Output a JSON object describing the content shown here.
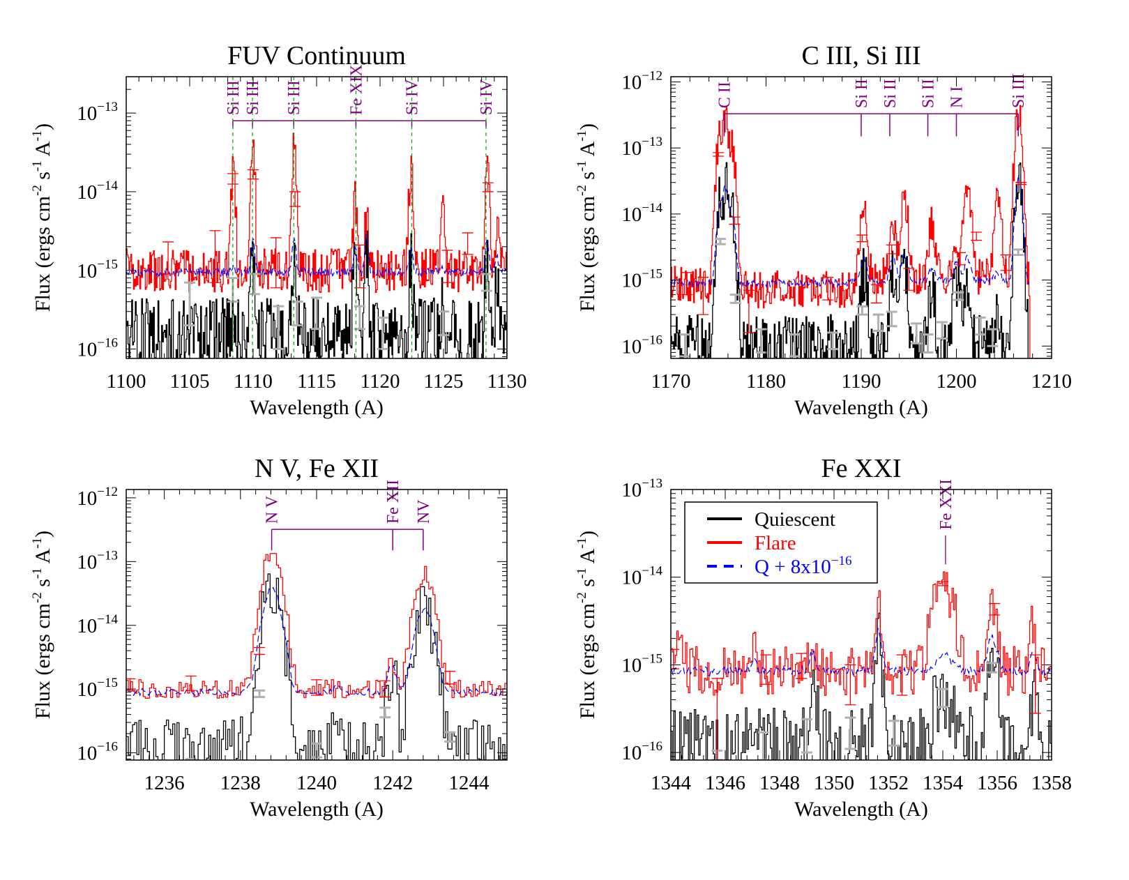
{
  "figure": {
    "ylabel_text": "Flux (ergs cm",
    "ylabel_parts": [
      "Flux (ergs cm",
      "-2",
      " s",
      "-1",
      " A",
      "-1",
      ")"
    ],
    "xlabel": "Wavelength (A)",
    "colors": {
      "quiescent": "#000000",
      "flare": "#ff0000",
      "shifted": "#0000ff",
      "line_id": "#800080",
      "line_marker": "#00aa00",
      "error_q": "#b0b0b0"
    }
  },
  "legend": {
    "placement": "upper-left of Fe XXI panel",
    "entries": [
      {
        "label": "Quiescent",
        "color": "#000000",
        "style": "solid"
      },
      {
        "label": "Flare",
        "color": "#ff0000",
        "style": "solid"
      },
      {
        "label": "Q + 8x10",
        "label_exp": "-16",
        "color": "#0000ff",
        "style": "dashed"
      }
    ]
  },
  "chart_data": [
    {
      "type": "line",
      "title": "FUV Continuum",
      "xlabel": "Wavelength (A)",
      "ylabel": "Flux (ergs cm^-2 s^-1 A^-1)",
      "yscale": "log",
      "xlim": [
        1100,
        1130
      ],
      "ylim": [
        7.6e-17,
        2.9e-13
      ],
      "xticks": [
        1100,
        1105,
        1110,
        1115,
        1120,
        1125,
        1130
      ],
      "yticks": [
        {
          "base": "10",
          "exp": "-16",
          "value": 1e-16
        },
        {
          "base": "10",
          "exp": "-15",
          "value": 1e-15
        },
        {
          "base": "10",
          "exp": "-14",
          "value": 1e-14
        },
        {
          "base": "10",
          "exp": "-13",
          "value": 1e-13
        }
      ],
      "continuum": {
        "quiescent": 1.5e-16,
        "flare": 1e-15,
        "shifted": 9.5e-16
      },
      "peaks": [
        {
          "x": 1108.4,
          "flare": 2.2e-14,
          "quiescent": 3e-16,
          "shifted": 1.1e-15
        },
        {
          "x": 1109.95,
          "flare": 3.3e-14,
          "quiescent": 1.6e-15,
          "shifted": 2.4e-15
        },
        {
          "x": 1113.2,
          "flare": 4.1e-14,
          "quiescent": 1.8e-15,
          "shifted": 2.6e-15
        },
        {
          "x": 1118.0,
          "flare": 7.5e-15,
          "quiescent": 1.2e-15,
          "shifted": 2e-15
        },
        {
          "x": 1118.9,
          "flare": 5e-15,
          "quiescent": 2e-15,
          "shifted": 2.8e-15
        },
        {
          "x": 1122.4,
          "flare": 1.8e-14,
          "quiescent": 1.2e-15,
          "shifted": 2e-15
        },
        {
          "x": 1124.9,
          "flare": 5.5e-15,
          "quiescent": 3e-16,
          "shifted": 1.1e-15
        },
        {
          "x": 1128.4,
          "flare": 2.4e-14,
          "quiescent": 1.7e-15,
          "shifted": 2.5e-15
        },
        {
          "x": 1129.2,
          "flare": 3e-15,
          "quiescent": 6e-16,
          "shifted": 1.4e-15
        }
      ],
      "line_ids": {
        "bracket_y": 8e-14,
        "tick_bottom_y": 8e-14,
        "dashed_markers": true,
        "lines": [
          {
            "label": "Si III",
            "x": 1108.4
          },
          {
            "label": "Si III",
            "x": 1109.95
          },
          {
            "label": "Si III",
            "x": 1113.2
          },
          {
            "label": "Fe XIX",
            "x": 1118.1
          },
          {
            "label": "Si IV",
            "x": 1122.5
          },
          {
            "label": "Si IV",
            "x": 1128.35
          }
        ]
      },
      "flare_errbars": [
        {
          "x": 1108.4,
          "lo": 1.25e-14,
          "hi": 1.7e-14
        },
        {
          "x": 1110.0,
          "lo": 1.45e-14,
          "hi": 1.9e-14
        },
        {
          "x": 1113.3,
          "lo": 6.5e-15,
          "hi": 1e-14
        },
        {
          "x": 1128.5,
          "lo": 1e-14,
          "hi": 1.3e-14
        },
        {
          "x": 1107.0,
          "lo": 7e-16,
          "hi": 3.2e-15
        },
        {
          "x": 1103.3,
          "lo": 9e-16,
          "hi": 2.3e-15
        },
        {
          "x": 1111.8,
          "lo": 6e-16,
          "hi": 2.6e-15
        },
        {
          "x": 1126.9,
          "lo": 1.6e-15,
          "hi": 3e-15
        },
        {
          "x": 1118.4,
          "lo": 6e-16,
          "hi": 2.1e-15
        },
        {
          "x": 1125.3,
          "lo": 7e-16,
          "hi": 1.8e-15
        }
      ],
      "quiescent_errbars": [
        {
          "x": 1105.0,
          "lo": 2e-16,
          "hi": 7e-16
        },
        {
          "x": 1108.4,
          "lo": 4e-16,
          "hi": 8e-16
        },
        {
          "x": 1110.1,
          "lo": 5e-16,
          "hi": 9e-16
        },
        {
          "x": 1112.0,
          "lo": 1e-16,
          "hi": 3.5e-16
        },
        {
          "x": 1113.5,
          "lo": 2e-16,
          "hi": 4e-16
        },
        {
          "x": 1115.0,
          "lo": 1.8e-16,
          "hi": 4.5e-16
        },
        {
          "x": 1118.4,
          "lo": 1.8e-16,
          "hi": 3.5e-16
        },
        {
          "x": 1120.2,
          "lo": 1e-16,
          "hi": 2.5e-16
        },
        {
          "x": 1125.0,
          "lo": 1.5e-16,
          "hi": 3e-16
        },
        {
          "x": 1128.4,
          "lo": 5.5e-16,
          "hi": 9e-16
        }
      ]
    },
    {
      "type": "line",
      "title": "C III, Si III",
      "xlabel": "Wavelength (A)",
      "ylabel": "Flux (ergs cm^-2 s^-1 A^-1)",
      "yscale": "log",
      "xlim": [
        1170,
        1210
      ],
      "ylim": [
        6.5e-17,
        1.2e-12
      ],
      "xticks": [
        1170,
        1180,
        1190,
        1200,
        1210
      ],
      "yticks": [
        {
          "base": "10",
          "exp": "-16",
          "value": 1e-16
        },
        {
          "base": "10",
          "exp": "-15",
          "value": 1e-15
        },
        {
          "base": "10",
          "exp": "-14",
          "value": 1e-14
        },
        {
          "base": "10",
          "exp": "-13",
          "value": 1e-13
        },
        {
          "base": "10",
          "exp": "-12",
          "value": 1e-12
        }
      ],
      "continuum": {
        "quiescent": 1e-16,
        "flare": 8.5e-16,
        "shifted": 9e-16
      },
      "peaks": [
        {
          "x": 1175.1,
          "flare": 1.4e-13,
          "quiescent": 1.2e-14,
          "shifted": 1.2e-14
        },
        {
          "x": 1175.7,
          "flare": 2.4e-13,
          "quiescent": 2.5e-14,
          "shifted": 2.5e-14
        },
        {
          "x": 1176.4,
          "flare": 1e-13,
          "quiescent": 9e-15,
          "shifted": 9e-15
        },
        {
          "x": 1190.2,
          "flare": 1e-14,
          "quiescent": 1.3e-15,
          "shifted": 2e-15
        },
        {
          "x": 1193.3,
          "flare": 5e-15,
          "quiescent": 1.2e-15,
          "shifted": 2e-15
        },
        {
          "x": 1194.5,
          "flare": 1.3e-14,
          "quiescent": 1.6e-15,
          "shifted": 2.4e-15
        },
        {
          "x": 1197.4,
          "flare": 5.5e-15,
          "quiescent": 6e-16,
          "shifted": 1.4e-15
        },
        {
          "x": 1200.0,
          "flare": 2.5e-15,
          "quiescent": 1.1e-15,
          "shifted": 1.8e-15
        },
        {
          "x": 1201.1,
          "flare": 2.4e-14,
          "quiescent": 1.2e-15,
          "shifted": 2e-15
        },
        {
          "x": 1204.3,
          "flare": 1.2e-14,
          "quiescent": 4e-16,
          "shifted": 1.2e-15
        },
        {
          "x": 1206.5,
          "flare": 3.3e-13,
          "quiescent": 3.5e-14,
          "shifted": 3.5e-14
        }
      ],
      "cutoff_x": 1207.7,
      "line_ids": {
        "bracket_y": 3.3e-13,
        "tick_bottom_y": 1.5e-13,
        "dashed_markers": false,
        "lines": [
          {
            "label": "C II",
            "x": 1175.6,
            "full": true
          },
          {
            "label": "Si II",
            "x": 1190.0
          },
          {
            "label": "Si II",
            "x": 1193.0
          },
          {
            "label": "Si II",
            "x": 1197.0
          },
          {
            "label": "N I",
            "x": 1200.0
          },
          {
            "label": "Si III",
            "x": 1206.5,
            "full": true
          }
        ]
      },
      "flare_errbars": [
        {
          "x": 1175.0,
          "lo": 7.5e-14,
          "hi": 8.5e-14
        },
        {
          "x": 1176.7,
          "lo": 7e-15,
          "hi": 9e-15
        },
        {
          "x": 1190.1,
          "lo": 3.8e-15,
          "hi": 4.8e-15
        },
        {
          "x": 1193.2,
          "lo": 2.5e-15,
          "hi": 3.4e-15
        },
        {
          "x": 1202.1,
          "lo": 4e-15,
          "hi": 5.3e-15
        },
        {
          "x": 1206.8,
          "lo": 2.8e-14,
          "hi": 3e-14
        },
        {
          "x": 1171.7,
          "lo": 6e-16,
          "hi": 1.3e-15
        },
        {
          "x": 1173.4,
          "lo": 3e-16,
          "hi": 1.1e-15
        },
        {
          "x": 1178.2,
          "lo": 1.6e-16,
          "hi": 7e-16
        },
        {
          "x": 1186.5,
          "lo": 5e-16,
          "hi": 1.1e-15
        },
        {
          "x": 1191.6,
          "lo": 4.5e-16,
          "hi": 8.5e-16
        },
        {
          "x": 1195.0,
          "lo": 7e-16,
          "hi": 1.5e-15
        },
        {
          "x": 1200.4,
          "lo": 1.7e-15,
          "hi": 2.6e-15
        },
        {
          "x": 1205.2,
          "lo": 1.4e-15,
          "hi": 2.4e-15
        }
      ],
      "quiescent_errbars": [
        {
          "x": 1175.2,
          "lo": 3.5e-15,
          "hi": 4.2e-15
        },
        {
          "x": 1176.8,
          "lo": 4.5e-16,
          "hi": 6e-16
        },
        {
          "x": 1171.5,
          "lo": 7e-17,
          "hi": 1.5e-16
        },
        {
          "x": 1179.5,
          "lo": 8e-17,
          "hi": 1.8e-16
        },
        {
          "x": 1183.0,
          "lo": 7e-17,
          "hi": 1.5e-16
        },
        {
          "x": 1187.0,
          "lo": 9e-17,
          "hi": 1.6e-16
        },
        {
          "x": 1190.1,
          "lo": 3e-16,
          "hi": 4e-16
        },
        {
          "x": 1191.8,
          "lo": 1.7e-16,
          "hi": 3e-16
        },
        {
          "x": 1193.2,
          "lo": 2e-16,
          "hi": 3.3e-16
        },
        {
          "x": 1195.8,
          "lo": 1.1e-16,
          "hi": 2.2e-16
        },
        {
          "x": 1197.0,
          "lo": 8e-17,
          "hi": 1.5e-16
        },
        {
          "x": 1198.5,
          "lo": 1.3e-16,
          "hi": 2.3e-16
        },
        {
          "x": 1200.2,
          "lo": 5e-16,
          "hi": 6.5e-16
        },
        {
          "x": 1202.5,
          "lo": 1.5e-16,
          "hi": 2.7e-16
        },
        {
          "x": 1203.8,
          "lo": 1e-16,
          "hi": 1.8e-16
        },
        {
          "x": 1206.5,
          "lo": 2.4e-15,
          "hi": 2.9e-15
        }
      ]
    },
    {
      "type": "line",
      "title": "N V, Fe XII",
      "xlabel": "Wavelength (A)",
      "ylabel": "Flux (ergs cm^-2 s^-1 A^-1)",
      "yscale": "log",
      "xlim": [
        1235,
        1245
      ],
      "ylim": [
        7.7e-17,
        1.35e-12
      ],
      "xticks": [
        1236,
        1238,
        1240,
        1242,
        1244
      ],
      "yticks": [
        {
          "base": "10",
          "exp": "-16",
          "value": 1e-16
        },
        {
          "base": "10",
          "exp": "-15",
          "value": 1e-15
        },
        {
          "base": "10",
          "exp": "-14",
          "value": 1e-14
        },
        {
          "base": "10",
          "exp": "-13",
          "value": 1e-13
        },
        {
          "base": "10",
          "exp": "-12",
          "value": 1e-12
        }
      ],
      "continuum": {
        "quiescent": 1.2e-16,
        "flare": 1e-15,
        "shifted": 9e-16
      },
      "peaks": [
        {
          "x": 1238.8,
          "flare": 1.5e-13,
          "quiescent": 3.7e-14,
          "shifted": 3.7e-14,
          "width": 0.18
        },
        {
          "x": 1240.5,
          "flare": 1e-15,
          "quiescent": 3.2e-16,
          "shifted": 1.1e-15,
          "width": 0.08
        },
        {
          "x": 1241.95,
          "flare": 2.4e-15,
          "quiescent": 1.6e-15,
          "shifted": 2.3e-15,
          "width": 0.1
        },
        {
          "x": 1242.8,
          "flare": 6.6e-14,
          "quiescent": 1.65e-14,
          "shifted": 1.7e-14,
          "width": 0.18
        }
      ],
      "line_ids": {
        "bracket_y": 3.2e-13,
        "tick_bottom_y": 1.5e-13,
        "dashed_markers": false,
        "lines": [
          {
            "label": "N V",
            "x": 1238.82,
            "full": true
          },
          {
            "label": "Fe XII",
            "x": 1242.0
          },
          {
            "label": "NV",
            "x": 1242.8,
            "full": true
          }
        ]
      },
      "flare_errbars": [
        {
          "x": 1238.5,
          "lo": 3.5e-15,
          "hi": 4.5e-15
        },
        {
          "x": 1241.8,
          "lo": 7.5e-16,
          "hi": 1.35e-15
        },
        {
          "x": 1236.7,
          "lo": 9.5e-16,
          "hi": 1.6e-15
        },
        {
          "x": 1240.0,
          "lo": 8e-16,
          "hi": 1.4e-15
        },
        {
          "x": 1243.5,
          "lo": 1.2e-15,
          "hi": 1.9e-15
        },
        {
          "x": 1235.1,
          "lo": 9.5e-16,
          "hi": 1.45e-15
        }
      ],
      "quiescent_errbars": [
        {
          "x": 1238.5,
          "lo": 7.5e-16,
          "hi": 9.5e-16
        },
        {
          "x": 1241.8,
          "lo": 3.6e-16,
          "hi": 5.1e-16
        },
        {
          "x": 1240.0,
          "lo": 8.5e-17,
          "hi": 1.4e-16
        },
        {
          "x": 1243.5,
          "lo": 1.5e-16,
          "hi": 2.1e-16
        },
        {
          "x": 1236.7,
          "lo": 7.5e-17,
          "hi": 8e-17
        }
      ]
    },
    {
      "type": "line",
      "title": "Fe XXI",
      "xlabel": "Wavelength (A)",
      "ylabel": "Flux (ergs cm^-2 s^-1 A^-1)",
      "yscale": "log",
      "xlim": [
        1344,
        1358
      ],
      "ylim": [
        8.2e-17,
        1e-13
      ],
      "xticks": [
        1344,
        1346,
        1348,
        1350,
        1352,
        1354,
        1356,
        1358
      ],
      "yticks": [
        {
          "base": "10",
          "exp": "-16",
          "value": 1e-16
        },
        {
          "base": "10",
          "exp": "-15",
          "value": 1e-15
        },
        {
          "base": "10",
          "exp": "-14",
          "value": 1e-14
        },
        {
          "base": "10",
          "exp": "-13",
          "value": 1e-13
        }
      ],
      "continuum": {
        "quiescent": 1.1e-16,
        "flare": 8.5e-16,
        "shifted": 8.5e-16
      },
      "peaks": [
        {
          "x": 1344.3,
          "flare": 2.8e-15,
          "quiescent": 1e-16,
          "shifted": 9e-16,
          "width": 0.1
        },
        {
          "x": 1347.0,
          "flare": 2e-15,
          "quiescent": 3e-16,
          "shifted": 1.1e-15,
          "width": 0.1
        },
        {
          "x": 1349.2,
          "flare": 1.5e-15,
          "quiescent": 6e-16,
          "shifted": 1.4e-15,
          "width": 0.1
        },
        {
          "x": 1351.6,
          "flare": 5e-15,
          "quiescent": 1.7e-15,
          "shifted": 2.5e-15,
          "width": 0.1
        },
        {
          "x": 1354.0,
          "flare": 8.5e-15,
          "quiescent": 4.5e-16,
          "shifted": 1.25e-15,
          "width": 0.3
        },
        {
          "x": 1355.8,
          "flare": 5e-15,
          "quiescent": 1.3e-15,
          "shifted": 2.1e-15,
          "width": 0.14
        },
        {
          "x": 1357.3,
          "flare": 2.8e-15,
          "quiescent": 5e-16,
          "shifted": 1.3e-15,
          "width": 0.1
        }
      ],
      "line_ids": {
        "bracket_y": null,
        "dashed_markers": false,
        "lines": [
          {
            "label": "Fe XXI",
            "x": 1354.1,
            "tick_top_y": 3e-14,
            "tick_bottom_y": 1.4e-14
          }
        ]
      },
      "flare_errbars": [
        {
          "x": 1354.0,
          "lo": 8e-15,
          "hi": 8.9e-15
        },
        {
          "x": 1355.9,
          "lo": 3.7e-15,
          "hi": 5e-15
        },
        {
          "x": 1344.1,
          "lo": 9e-16,
          "hi": 1.5e-15
        },
        {
          "x": 1345.7,
          "lo": 8.2e-17,
          "hi": 7e-16
        },
        {
          "x": 1347.5,
          "lo": 6e-16,
          "hi": 1.3e-15
        },
        {
          "x": 1348.8,
          "lo": 7e-16,
          "hi": 1.35e-15
        },
        {
          "x": 1350.6,
          "lo": 3.5e-16,
          "hi": 1e-15
        },
        {
          "x": 1352.5,
          "lo": 4.5e-16,
          "hi": 1.3e-15
        },
        {
          "x": 1357.4,
          "lo": 2.8e-16,
          "hi": 1.3e-15
        }
      ],
      "quiescent_errbars": [
        {
          "x": 1345.7,
          "lo": 8.2e-17,
          "hi": 1.05e-16
        },
        {
          "x": 1347.4,
          "lo": 8.2e-17,
          "hi": 1.7e-16
        },
        {
          "x": 1349.0,
          "lo": 1e-16,
          "hi": 2.4e-16
        },
        {
          "x": 1350.6,
          "lo": 1.1e-16,
          "hi": 2.5e-16
        },
        {
          "x": 1352.2,
          "lo": 1.2e-16,
          "hi": 2.3e-16
        },
        {
          "x": 1354.0,
          "lo": 3.3e-16,
          "hi": 5.3e-16
        },
        {
          "x": 1355.8,
          "lo": 8.2e-16,
          "hi": 1.05e-15
        }
      ]
    }
  ]
}
